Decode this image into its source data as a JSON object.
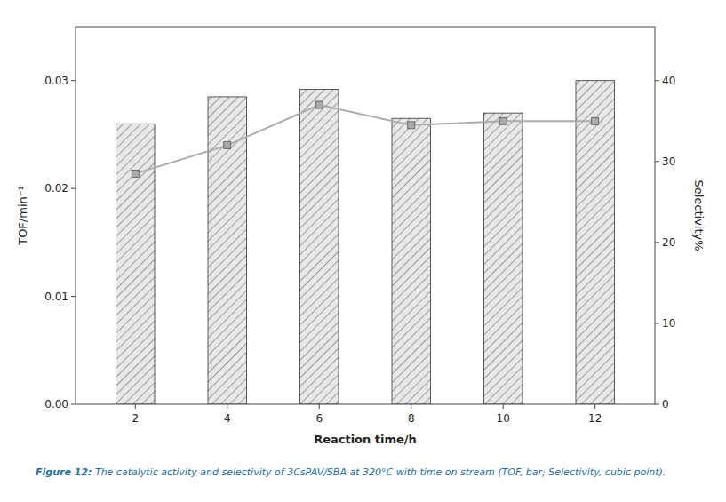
{
  "chart_data": {
    "type": "bar",
    "x": [
      2,
      4,
      6,
      8,
      10,
      12
    ],
    "xlim": [
      0.7,
      13.3
    ],
    "xticks": [
      2,
      4,
      6,
      8,
      10,
      12
    ],
    "xlabel": "Reaction time/h",
    "ylabel": "TOF/min⁻¹",
    "y2label": "Selectivity%",
    "ylim": [
      0.0,
      0.035
    ],
    "yticks": [
      {
        "value": 0.0,
        "label": "0.00"
      },
      0.01,
      0.02,
      0.03
    ],
    "y2lim": [
      0,
      46.67
    ],
    "y2ticks": [
      0,
      10,
      20,
      30,
      40
    ],
    "grid": false,
    "series": [
      {
        "type": "bar",
        "color": "#e8e8e8",
        "values": [
          0.026,
          0.0285,
          0.0292,
          0.0265,
          0.027,
          0.03
        ]
      },
      {
        "type": "line",
        "axis": "y2",
        "color": "#aaaaaa",
        "marker": "square",
        "values": [
          28.5,
          32.0,
          37.0,
          34.5,
          35.0,
          35.0
        ]
      }
    ],
    "annotations": [
      "Figure 12:",
      " The catalytic activity and selectivity of 3CsPAV/SBA at 320°C with time on stream (TOF, bar; Selectivity, cubic point)."
    ]
  }
}
